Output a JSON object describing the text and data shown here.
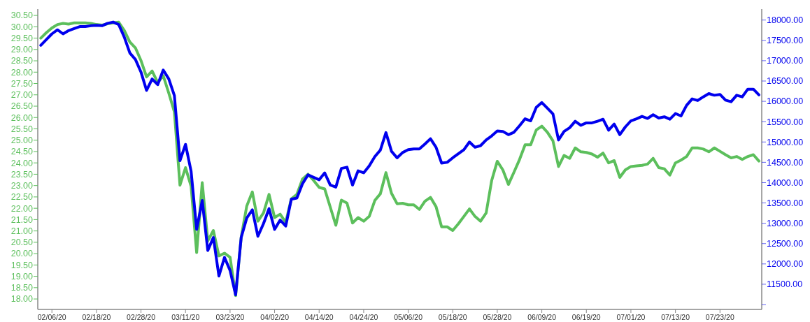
{
  "chart_data": {
    "type": "line",
    "categories": [
      null,
      null,
      "02/06/20",
      null,
      null,
      null,
      null,
      null,
      null,
      null,
      "02/18/20",
      null,
      null,
      null,
      null,
      null,
      null,
      null,
      "02/28/20",
      null,
      null,
      null,
      null,
      null,
      null,
      null,
      "03/11/20",
      null,
      null,
      null,
      null,
      null,
      null,
      null,
      "03/23/20",
      null,
      null,
      null,
      null,
      null,
      null,
      null,
      "04/02/20",
      null,
      null,
      null,
      null,
      null,
      null,
      null,
      "04/14/20",
      null,
      null,
      null,
      null,
      null,
      null,
      null,
      "04/24/20",
      null,
      null,
      null,
      null,
      null,
      null,
      null,
      "05/06/20",
      null,
      null,
      null,
      null,
      null,
      null,
      null,
      "05/18/20",
      null,
      null,
      null,
      null,
      null,
      null,
      null,
      "05/28/20",
      null,
      null,
      null,
      null,
      null,
      null,
      null,
      "06/09/20",
      null,
      null,
      null,
      null,
      null,
      null,
      null,
      "06/19/20",
      null,
      null,
      null,
      null,
      null,
      null,
      null,
      "07/01/20",
      null,
      null,
      null,
      null,
      null,
      null,
      null,
      "07/13/20",
      null,
      null,
      null,
      null,
      null,
      null,
      null,
      "07/23/20",
      null,
      null,
      null,
      null,
      null,
      null,
      null
    ],
    "series": [
      {
        "color": "#5cbf5c",
        "values": [
          29.5,
          29.74,
          29.95,
          30.1,
          30.15,
          30.12,
          30.17,
          30.17,
          30.17,
          30.15,
          30.1,
          30.07,
          30.13,
          30.17,
          30.2,
          29.84,
          29.33,
          29.07,
          28.51,
          27.79,
          28.05,
          27.54,
          27.84,
          27.07,
          26.25,
          23.02,
          23.79,
          22.97,
          20.05,
          23.13,
          20.56,
          21.02,
          19.9,
          20.02,
          19.84,
          18.15,
          20.72,
          22.1,
          22.72,
          21.43,
          21.79,
          22.61,
          21.59,
          21.74,
          21.38,
          22.41,
          22.61,
          23.28,
          23.5,
          23.23,
          22.92,
          22.85,
          22.05,
          21.25,
          22.36,
          22.23,
          21.35,
          21.59,
          21.43,
          21.64,
          22.34,
          22.64,
          23.57,
          22.66,
          22.2,
          22.22,
          22.15,
          22.15,
          21.95,
          22.31,
          22.48,
          22.07,
          21.18,
          21.18,
          21.02,
          21.31,
          21.64,
          21.97,
          21.64,
          21.43,
          21.79,
          23.23,
          24.07,
          23.69,
          23.05,
          23.59,
          24.15,
          24.8,
          24.8,
          25.45,
          25.62,
          25.35,
          24.97,
          23.84,
          24.33,
          24.2,
          24.66,
          24.49,
          24.46,
          24.39,
          24.25,
          24.43,
          24.0,
          24.1,
          23.36,
          23.69,
          23.84,
          23.87,
          23.89,
          23.95,
          24.2,
          23.79,
          23.74,
          23.46,
          24.0,
          24.12,
          24.28,
          24.66,
          24.66,
          24.61,
          24.49,
          24.66,
          24.51,
          24.36,
          24.22,
          24.28,
          24.15,
          24.28,
          24.36,
          24.08
        ]
      },
      {
        "color": "#0000ee",
        "axis": "y2",
        "values": [
          17380,
          17520,
          17660,
          17760,
          17660,
          17740,
          17790,
          17840,
          17840,
          17860,
          17870,
          17860,
          17920,
          17950,
          17890,
          17580,
          17190,
          17030,
          16720,
          16270,
          16550,
          16410,
          16770,
          16550,
          16140,
          14540,
          14940,
          14280,
          12850,
          13560,
          12330,
          12650,
          11700,
          12160,
          11840,
          11240,
          12650,
          13130,
          13330,
          12680,
          12990,
          13360,
          12850,
          13080,
          12930,
          13590,
          13620,
          13970,
          14190,
          14130,
          14070,
          14240,
          13940,
          13890,
          14350,
          14380,
          13940,
          14290,
          14240,
          14410,
          14640,
          14800,
          15230,
          14770,
          14610,
          14740,
          14810,
          14830,
          14830,
          14950,
          15080,
          14870,
          14480,
          14500,
          14610,
          14710,
          14810,
          15000,
          14870,
          14910,
          15050,
          15150,
          15270,
          15260,
          15180,
          15240,
          15400,
          15570,
          15520,
          15850,
          15970,
          15830,
          15690,
          15050,
          15260,
          15350,
          15510,
          15410,
          15470,
          15470,
          15510,
          15560,
          15290,
          15440,
          15180,
          15370,
          15520,
          15570,
          15630,
          15580,
          15670,
          15590,
          15620,
          15560,
          15700,
          15640,
          15900,
          16060,
          16020,
          16110,
          16190,
          16150,
          16170,
          16030,
          15990,
          16150,
          16110,
          16300,
          16300,
          16160
        ]
      }
    ],
    "ylim": [
      17.54,
      30.78
    ],
    "yticks": [
      {
        "value": 18,
        "label": "18.00"
      },
      {
        "value": 18.5,
        "label": "18.50"
      },
      {
        "value": 19,
        "label": "19.00"
      },
      {
        "value": 19.5,
        "label": "19.50"
      },
      {
        "value": 20,
        "label": "20.00"
      },
      {
        "value": 20.5,
        "label": "20.50"
      },
      {
        "value": 21,
        "label": "21.00"
      },
      {
        "value": 21.5,
        "label": "21.50"
      },
      {
        "value": 22,
        "label": "22.00"
      },
      {
        "value": 22.5,
        "label": "22.50"
      },
      {
        "value": 23,
        "label": "23.00"
      },
      {
        "value": 23.5,
        "label": "23.50"
      },
      {
        "value": 24,
        "label": "24.00"
      },
      {
        "value": 24.5,
        "label": "24.50"
      },
      {
        "value": 25,
        "label": "25.00"
      },
      {
        "value": 25.5,
        "label": "25.50"
      },
      {
        "value": 26,
        "label": "26.00"
      },
      {
        "value": 26.5,
        "label": "26.50"
      },
      {
        "value": 27,
        "label": "27.00"
      },
      {
        "value": 27.5,
        "label": "27.50"
      },
      {
        "value": 28,
        "label": "28.00"
      },
      {
        "value": 28.5,
        "label": "28.50"
      },
      {
        "value": 29,
        "label": "29.00"
      },
      {
        "value": 29.5,
        "label": "29.50"
      },
      {
        "value": 30,
        "label": "30.00"
      },
      {
        "value": 30.5,
        "label": "30.50"
      }
    ],
    "y2lim": [
      10880,
      18270
    ],
    "y2ticks": [
      {
        "value": 11000,
        "label": null
      },
      {
        "value": 11500,
        "label": "11500.00"
      },
      {
        "value": 12000,
        "label": "12000.00"
      },
      {
        "value": 12500,
        "label": "12500.00"
      },
      {
        "value": 13000,
        "label": "13000.00"
      },
      {
        "value": 13500,
        "label": "13500.00"
      },
      {
        "value": 14000,
        "label": "14000.00"
      },
      {
        "value": 14500,
        "label": "14500.00"
      },
      {
        "value": 15000,
        "label": "15000.00"
      },
      {
        "value": 15500,
        "label": "15500.00"
      },
      {
        "value": 16000,
        "label": "16000.00"
      },
      {
        "value": 16500,
        "label": "16500.00"
      },
      {
        "value": 17000,
        "label": "17000.00"
      },
      {
        "value": 17500,
        "label": "17500.00"
      },
      {
        "value": 18000,
        "label": "18000.00"
      }
    ],
    "line_style": "solid",
    "grid": false
  }
}
